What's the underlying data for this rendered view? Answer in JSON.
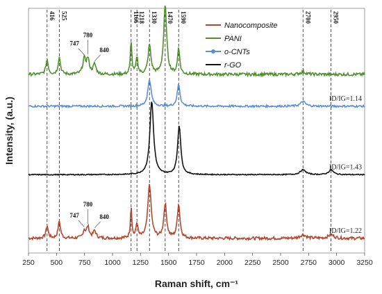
{
  "chart_data": {
    "type": "line",
    "xlabel": "Raman shift, cm⁻¹",
    "ylabel": "Intensity, (a.u.)",
    "xlim": [
      250,
      3250
    ],
    "xticks": [
      250,
      500,
      750,
      1000,
      1250,
      1500,
      1750,
      2000,
      2250,
      2500,
      2750,
      3000,
      3250
    ],
    "y_ticks_shown": false,
    "grid": false,
    "legend_position": "top-right",
    "reference_lines": [
      416,
      525,
      1166,
      1218,
      1330,
      1470,
      1590,
      2700,
      2950
    ],
    "peak_labels_top": [
      "416",
      "525",
      "1166",
      "1218",
      "1330",
      "1470",
      "1590",
      "2700",
      "2950"
    ],
    "series": [
      {
        "name": "Nanocomposite",
        "color": "#b5452c",
        "baseline": 0.06,
        "noise": 0.012,
        "ratio_label": "ID/IG=1.22",
        "peaks": [
          {
            "x": 416,
            "h": 0.05,
            "w": 25
          },
          {
            "x": 525,
            "h": 0.07,
            "w": 25
          },
          {
            "x": 747,
            "h": 0.03,
            "w": 25
          },
          {
            "x": 780,
            "h": 0.045,
            "w": 30
          },
          {
            "x": 840,
            "h": 0.03,
            "w": 30
          },
          {
            "x": 1166,
            "h": 0.13,
            "w": 15
          },
          {
            "x": 1218,
            "h": 0.06,
            "w": 20
          },
          {
            "x": 1330,
            "h": 0.22,
            "w": 35
          },
          {
            "x": 1470,
            "h": 0.14,
            "w": 30
          },
          {
            "x": 1590,
            "h": 0.14,
            "w": 28
          },
          {
            "x": 2700,
            "h": 0.015,
            "w": 60
          },
          {
            "x": 2950,
            "h": 0.015,
            "w": 60
          }
        ]
      },
      {
        "name": "PANI",
        "color": "#4f8f2c",
        "baseline": 0.73,
        "noise": 0.012,
        "peaks": [
          {
            "x": 416,
            "h": 0.06,
            "w": 25
          },
          {
            "x": 525,
            "h": 0.07,
            "w": 25
          },
          {
            "x": 747,
            "h": 0.06,
            "w": 30
          },
          {
            "x": 780,
            "h": 0.06,
            "w": 30
          },
          {
            "x": 840,
            "h": 0.04,
            "w": 30
          },
          {
            "x": 1166,
            "h": 0.14,
            "w": 15
          },
          {
            "x": 1218,
            "h": 0.07,
            "w": 20
          },
          {
            "x": 1330,
            "h": 0.12,
            "w": 30
          },
          {
            "x": 1470,
            "h": 0.28,
            "w": 32
          },
          {
            "x": 1590,
            "h": 0.11,
            "w": 22
          },
          {
            "x": 2700,
            "h": 0.01,
            "w": 60
          }
        ]
      },
      {
        "name": "o-CNTs",
        "color": "#5b8fd6",
        "baseline": 0.6,
        "noise": 0.008,
        "ratio_label": "ID/IG=1.14",
        "peaks": [
          {
            "x": 1330,
            "h": 0.11,
            "w": 35
          },
          {
            "x": 1590,
            "h": 0.09,
            "w": 30
          },
          {
            "x": 2700,
            "h": 0.02,
            "w": 50
          }
        ]
      },
      {
        "name": "r-GO",
        "color": "#111111",
        "baseline": 0.32,
        "noise": 0.004,
        "ratio_label": "ID/IG=1.43",
        "peaks": [
          {
            "x": 1350,
            "h": 0.3,
            "w": 40
          },
          {
            "x": 1595,
            "h": 0.2,
            "w": 34
          },
          {
            "x": 2700,
            "h": 0.02,
            "w": 60
          },
          {
            "x": 2950,
            "h": 0.02,
            "w": 50
          }
        ]
      }
    ],
    "annotations": [
      {
        "text": "747",
        "series": "PANI",
        "x": 747
      },
      {
        "text": "780",
        "series": "PANI",
        "x": 780
      },
      {
        "text": "840",
        "series": "PANI",
        "x": 840
      },
      {
        "text": "747",
        "series": "Nanocomposite",
        "x": 747
      },
      {
        "text": "780",
        "series": "Nanocomposite",
        "x": 780
      },
      {
        "text": "840",
        "series": "Nanocomposite",
        "x": 840
      }
    ]
  }
}
